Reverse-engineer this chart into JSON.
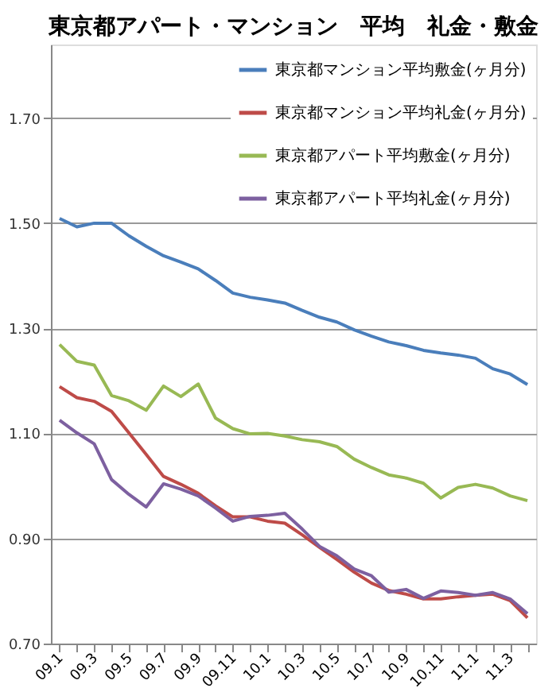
{
  "chart_data": {
    "type": "line",
    "title": "東京都アパート・マンション　平均　礼金・敷金",
    "categories": [
      "09.1",
      null,
      "09.3",
      null,
      "09.5",
      null,
      "09.7",
      null,
      "09.9",
      null,
      "09.11",
      null,
      "10.1",
      null,
      "10.3",
      null,
      "10.5",
      null,
      "10.7",
      null,
      "10.9",
      null,
      "10.11",
      null,
      "11.1",
      null,
      "11.3",
      null
    ],
    "series": [
      {
        "name": "東京都マンション平均敷金(ヶ月分)",
        "color": "#4a7ebb",
        "values": [
          1.509,
          1.493,
          1.5,
          1.5,
          1.476,
          1.456,
          1.438,
          1.426,
          1.413,
          1.391,
          1.367,
          1.359,
          1.354,
          1.348,
          1.334,
          1.321,
          1.312,
          1.297,
          1.285,
          1.274,
          1.267,
          1.258,
          1.253,
          1.249,
          1.243,
          1.223,
          1.213,
          1.193
        ]
      },
      {
        "name": "東京都マンション平均礼金(ヶ月分)",
        "color": "#be4b48",
        "values": [
          1.189,
          1.168,
          1.161,
          1.142,
          1.101,
          1.06,
          1.018,
          1.003,
          0.986,
          0.962,
          0.941,
          0.941,
          0.933,
          0.929,
          0.907,
          0.883,
          0.86,
          0.836,
          0.815,
          0.801,
          0.794,
          0.785,
          0.785,
          0.789,
          0.792,
          0.794,
          0.782,
          0.749
        ]
      },
      {
        "name": "東京都アパート平均敷金(ヶ月分)",
        "color": "#98b954",
        "values": [
          1.269,
          1.237,
          1.23,
          1.172,
          1.162,
          1.144,
          1.19,
          1.17,
          1.194,
          1.129,
          1.109,
          1.099,
          1.1,
          1.095,
          1.088,
          1.084,
          1.075,
          1.051,
          1.035,
          1.021,
          1.015,
          1.005,
          0.977,
          0.997,
          1.003,
          0.996,
          0.981,
          0.972
        ]
      },
      {
        "name": "東京都アパート平均礼金(ヶ月分)",
        "color": "#7d60a0",
        "values": [
          1.125,
          1.101,
          1.08,
          1.012,
          0.984,
          0.96,
          1.004,
          0.994,
          0.981,
          0.958,
          0.933,
          0.942,
          0.944,
          0.948,
          0.918,
          0.885,
          0.867,
          0.842,
          0.829,
          0.798,
          0.803,
          0.786,
          0.8,
          0.797,
          0.792,
          0.797,
          0.785,
          0.757
        ]
      }
    ],
    "ylim": [
      0.7,
      1.84
    ],
    "yticks": [
      {
        "value": 0.7,
        "label": "0.70"
      },
      {
        "value": 0.9,
        "label": "0.90"
      },
      {
        "value": 1.1,
        "label": "1.10"
      },
      {
        "value": 1.3,
        "label": "1.30"
      },
      {
        "value": 1.5,
        "label": "1.50"
      },
      {
        "value": 1.7,
        "label": "1.70"
      }
    ],
    "grid": "y",
    "legend": "top right",
    "marker": "none",
    "line_style": "solid"
  }
}
